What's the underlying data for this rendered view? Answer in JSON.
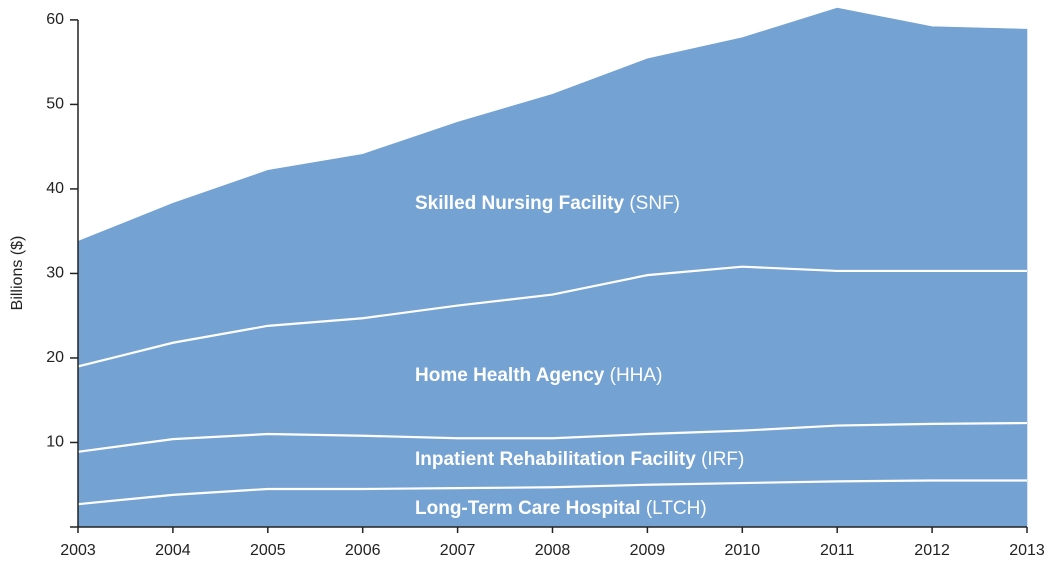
{
  "chart_data": {
    "type": "stacked_area",
    "y_label": "Billions ($)",
    "x": [
      2003,
      2004,
      2005,
      2006,
      2007,
      2008,
      2009,
      2010,
      2011,
      2012,
      2013
    ],
    "xlim": [
      2003,
      2013
    ],
    "xticks": [
      2003,
      2004,
      2005,
      2006,
      2007,
      2008,
      2009,
      2010,
      2011,
      2012,
      2013
    ],
    "ylim": [
      0,
      62
    ],
    "yticks": [
      10,
      20,
      30,
      40,
      50,
      60
    ],
    "color": "#74a2d3",
    "series": [
      {
        "name": "Long-Term Care Hospital",
        "abbreviation": "(LTCH)",
        "values": [
          2.7,
          3.8,
          4.5,
          4.5,
          4.6,
          4.7,
          5.0,
          5.2,
          5.4,
          5.5,
          5.5
        ]
      },
      {
        "name": "Inpatient Rehabilitation Facility",
        "abbreviation": "(IRF)",
        "values": [
          6.2,
          6.6,
          6.5,
          6.3,
          5.9,
          5.8,
          6.0,
          6.2,
          6.6,
          6.7,
          6.8
        ]
      },
      {
        "name": "Home Health Agency",
        "abbreviation": "(HHA)",
        "values": [
          10.1,
          11.4,
          12.8,
          13.9,
          15.7,
          17.0,
          18.8,
          19.4,
          18.3,
          18.1,
          18.0
        ]
      },
      {
        "name": "Skilled Nursing Facility",
        "abbreviation": "(SNF)",
        "values": [
          14.8,
          16.5,
          18.4,
          19.4,
          21.7,
          23.7,
          25.6,
          27.1,
          31.1,
          28.9,
          28.6
        ]
      }
    ]
  }
}
